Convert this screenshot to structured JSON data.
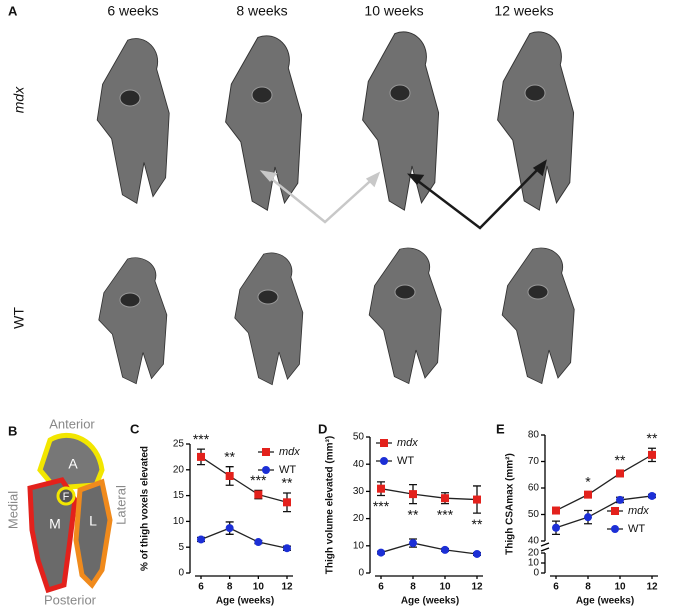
{
  "panel_labels": [
    "A",
    "B",
    "C",
    "D",
    "E"
  ],
  "column_labels": [
    "6 weeks",
    "8 weeks",
    "10 weeks",
    "12 weeks"
  ],
  "row_labels": [
    "mdx",
    "WT"
  ],
  "diagram": {
    "directions": [
      "Anterior",
      "Medial",
      "Lateral",
      "Posterior"
    ],
    "regions": [
      "A",
      "F",
      "M",
      "L"
    ]
  },
  "chart_data": [
    {
      "type": "line",
      "y_label": "% of thigh voxels elevated",
      "x_label": "Age (weeks)",
      "categories": [
        "6",
        "8",
        "10",
        "12"
      ],
      "ylim": [
        0,
        25
      ],
      "yticks": [
        0,
        5,
        10,
        15,
        20,
        25
      ],
      "legend": "upper right",
      "series": [
        {
          "name": "mdx",
          "color": "#e3211c",
          "marker": "square",
          "values": [
            22.5,
            18.8,
            15.2,
            13.7
          ],
          "errors": [
            1.5,
            1.8,
            0.8,
            1.8
          ]
        },
        {
          "name": "WT",
          "color": "#1c2fd6",
          "marker": "circle",
          "values": [
            6.5,
            8.7,
            6.0,
            4.8
          ],
          "errors": [
            0.4,
            1.2,
            0.3,
            0.4
          ]
        }
      ],
      "annotations": [
        {
          "category": "6",
          "text": "***"
        },
        {
          "category": "8",
          "text": "**"
        },
        {
          "category": "10",
          "text": "***"
        },
        {
          "category": "12",
          "text": "**"
        }
      ]
    },
    {
      "type": "line",
      "y_label": "Thigh volume elevated (mm³)",
      "x_label": "Age (weeks)",
      "categories": [
        "6",
        "8",
        "10",
        "12"
      ],
      "ylim": [
        0,
        50
      ],
      "yticks": [
        0,
        10,
        20,
        30,
        40,
        50
      ],
      "legend": "upper left",
      "series": [
        {
          "name": "mdx",
          "color": "#e3211c",
          "marker": "square",
          "values": [
            31,
            29,
            27.5,
            27
          ],
          "errors": [
            2.5,
            3.5,
            2,
            5
          ]
        },
        {
          "name": "WT",
          "color": "#1c2fd6",
          "marker": "circle",
          "values": [
            7.5,
            11,
            8.5,
            7
          ],
          "errors": [
            0.5,
            1.5,
            0.5,
            0.5
          ]
        }
      ],
      "annotations": [
        {
          "category": "6",
          "text": "***"
        },
        {
          "category": "8",
          "text": "**"
        },
        {
          "category": "10",
          "text": "***"
        },
        {
          "category": "12",
          "text": "**"
        }
      ]
    },
    {
      "type": "line",
      "y_label": "Thigh CSAmax (mm²)",
      "x_label": "Age (weeks)",
      "categories": [
        "6",
        "8",
        "10",
        "12"
      ],
      "ylim": [
        0,
        80
      ],
      "ybreak": [
        20,
        40
      ],
      "yticks": [
        0,
        10,
        20,
        40,
        50,
        60,
        70,
        80
      ],
      "legend": "lower right",
      "series": [
        {
          "name": "mdx",
          "color": "#e3211c",
          "marker": "square",
          "values": [
            51.5,
            57.5,
            65.5,
            72.5
          ],
          "errors": [
            1,
            1,
            1.2,
            2.5
          ]
        },
        {
          "name": "WT",
          "color": "#1c2fd6",
          "marker": "circle",
          "values": [
            45,
            49,
            55.5,
            57
          ],
          "errors": [
            2.5,
            2.5,
            1,
            0.6
          ]
        }
      ],
      "annotations": [
        {
          "category": "8",
          "text": "*"
        },
        {
          "category": "10",
          "text": "**"
        },
        {
          "category": "12",
          "text": "**"
        }
      ]
    }
  ]
}
